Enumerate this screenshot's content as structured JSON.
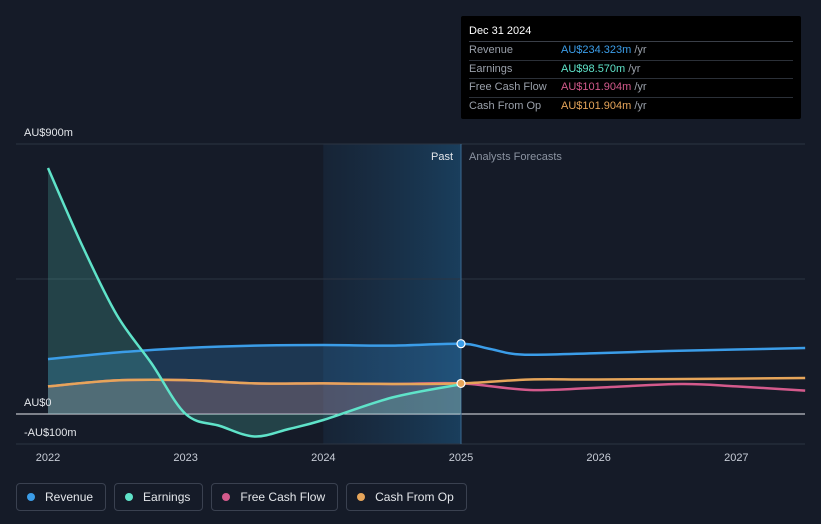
{
  "tooltip": {
    "date": "Dec 31 2024",
    "rows": [
      {
        "label": "Revenue",
        "value": "AU$234.323m",
        "unit": "/yr",
        "color": "#3b9de8"
      },
      {
        "label": "Earnings",
        "value": "AU$98.570m",
        "unit": "/yr",
        "color": "#5fe3c9"
      },
      {
        "label": "Free Cash Flow",
        "value": "AU$101.904m",
        "unit": "/yr",
        "color": "#d45a8c"
      },
      {
        "label": "Cash From Op",
        "value": "AU$101.904m",
        "unit": "/yr",
        "color": "#e6a55a"
      }
    ]
  },
  "chart_data": {
    "type": "line",
    "y_axis": {
      "top_label": "AU$900m",
      "zero_label": "AU$0",
      "bottom_label": "-AU$100m",
      "ylim": [
        -100,
        900
      ]
    },
    "x_axis": {
      "ticks": [
        "2022",
        "2023",
        "2024",
        "2025",
        "2026",
        "2027"
      ],
      "xlim": [
        2021.8,
        2027.5
      ]
    },
    "past_label": "Past",
    "forecast_label": "Analysts Forecasts",
    "divider_x": 2025.0,
    "shade_start_x": 2024.0,
    "series": [
      {
        "name": "Revenue",
        "color": "#3b9de8",
        "x": [
          2022.0,
          2022.5,
          2023.0,
          2023.5,
          2024.0,
          2024.5,
          2025.0,
          2025.2,
          2025.45,
          2026.0,
          2026.5,
          2027.0,
          2027.5
        ],
        "y": [
          183,
          205,
          220,
          228,
          230,
          228,
          234,
          218,
          198,
          203,
          210,
          215,
          220
        ]
      },
      {
        "name": "Earnings",
        "color": "#5fe3c9",
        "x": [
          2022.0,
          2022.25,
          2022.5,
          2022.75,
          2023.0,
          2023.25,
          2023.5,
          2023.75,
          2024.0,
          2024.5,
          2025.0
        ],
        "y": [
          820,
          560,
          330,
          170,
          0,
          -40,
          -75,
          -50,
          -20,
          55,
          99
        ]
      },
      {
        "name": "Free Cash Flow",
        "color": "#d45a8c",
        "x": [
          2022.0,
          2022.5,
          2023.0,
          2023.5,
          2024.0,
          2024.5,
          2025.0,
          2025.5,
          2026.0,
          2026.6,
          2027.0,
          2027.5
        ],
        "y": [
          92,
          112,
          113,
          102,
          102,
          100,
          102,
          80,
          88,
          100,
          92,
          78
        ]
      },
      {
        "name": "Cash From Op",
        "color": "#e6a55a",
        "x": [
          2022.0,
          2022.5,
          2023.0,
          2023.5,
          2024.0,
          2024.5,
          2025.0,
          2025.5,
          2026.0,
          2027.0,
          2027.5
        ],
        "y": [
          92,
          112,
          113,
          102,
          102,
          100,
          102,
          115,
          115,
          118,
          120
        ]
      }
    ]
  },
  "legend": [
    {
      "label": "Revenue",
      "color": "#3b9de8"
    },
    {
      "label": "Earnings",
      "color": "#5fe3c9"
    },
    {
      "label": "Free Cash Flow",
      "color": "#d45a8c"
    },
    {
      "label": "Cash From Op",
      "color": "#e6a55a"
    }
  ]
}
